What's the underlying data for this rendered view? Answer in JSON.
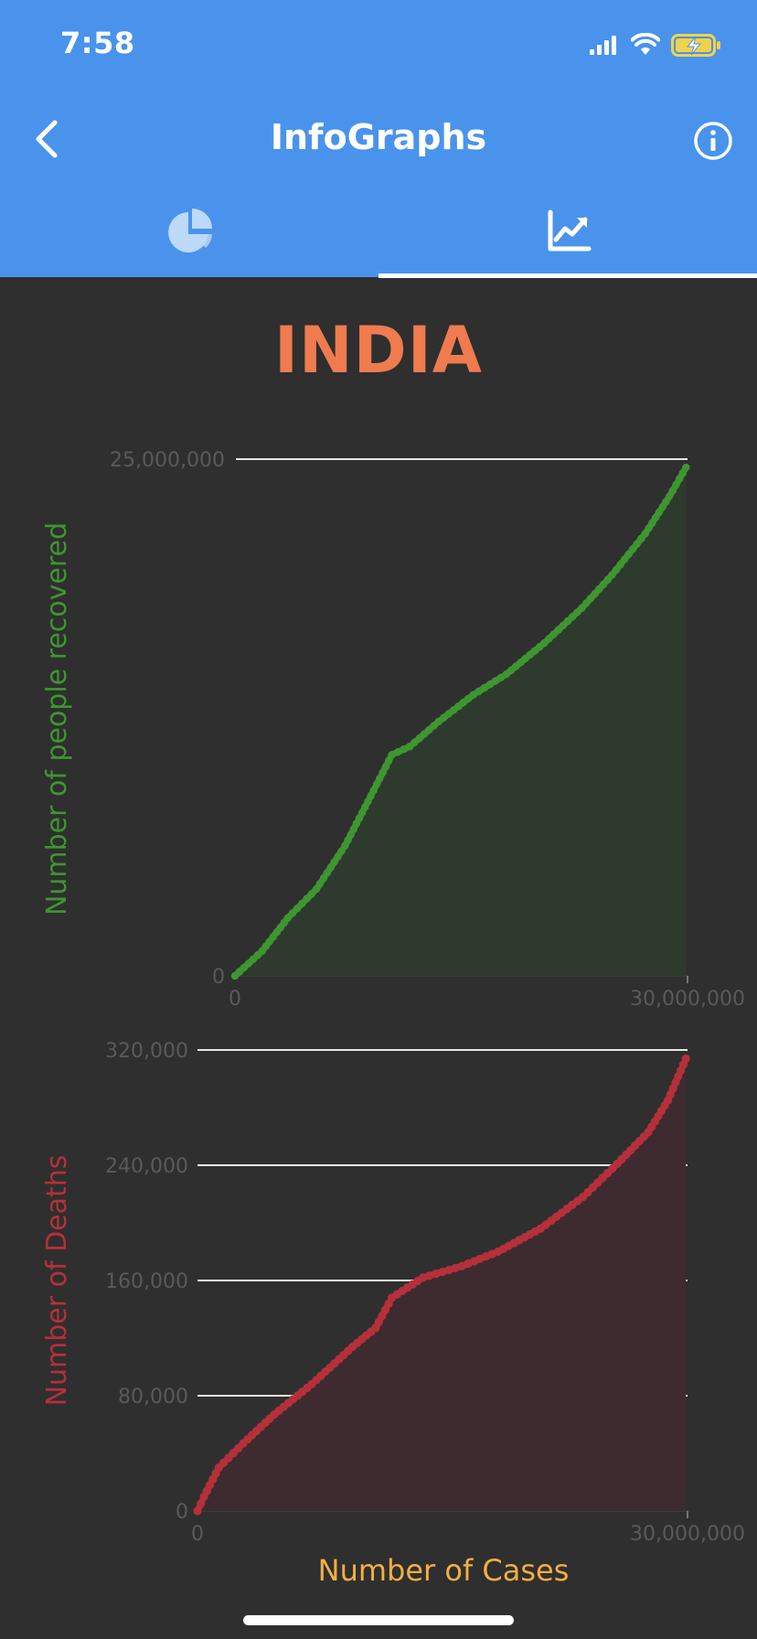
{
  "status_bar": {
    "time": "7:58"
  },
  "header": {
    "title": "InfoGraphs"
  },
  "icons": {
    "back": "chevron-left-icon",
    "info": "info-icon",
    "tab_pie": "pie-chart-icon",
    "tab_line": "line-chart-icon",
    "signal": "signal-icon",
    "wifi": "wifi-icon",
    "battery": "battery-charging-icon"
  },
  "country": "INDIA",
  "colors": {
    "appbar": "#4a93ec",
    "background": "#2f2f2f",
    "country": "#ef7b4f",
    "recovered": "#3e9630",
    "deaths": "#b5303a",
    "x_axis_label": "#f4ae42"
  },
  "tabs": [
    {
      "icon": "pie-chart-icon",
      "selected": false
    },
    {
      "icon": "line-chart-icon",
      "selected": true
    }
  ],
  "chart_data": [
    {
      "type": "area",
      "ylabel": "Number of people recovered",
      "xlim": [
        0,
        30000000
      ],
      "ylim": [
        0,
        25000000
      ],
      "x_ticks": [
        "0",
        "30,000,000"
      ],
      "y_ticks": [
        "0",
        "25,000,000"
      ],
      "y_tick_values": [
        0,
        25000000
      ],
      "color": "#3e9630",
      "fill": "#2e3a2e",
      "x": [
        0,
        1800000,
        3500000,
        5400000,
        7300000,
        9000000,
        10400000,
        11600000,
        13500000,
        15800000,
        18000000,
        20500000,
        23000000,
        25000000,
        27200000,
        28800000,
        29900000
      ],
      "y": [
        0,
        1200000,
        2800000,
        4200000,
        6300000,
        8700000,
        10700000,
        11100000,
        12300000,
        13600000,
        14600000,
        16100000,
        17800000,
        19400000,
        21400000,
        23200000,
        24600000
      ]
    },
    {
      "type": "area",
      "ylabel": "Number of Deaths",
      "xlabel": "Number of Cases",
      "xlim": [
        0,
        30000000
      ],
      "ylim": [
        0,
        320000
      ],
      "x_ticks": [
        "0",
        "30,000,000"
      ],
      "y_ticks": [
        "0",
        "80,000",
        "160,000",
        "240,000",
        "320,000"
      ],
      "y_tick_values": [
        0,
        80000,
        160000,
        240000,
        320000
      ],
      "color": "#b5303a",
      "fill": "#3d2b2f",
      "x": [
        0,
        400000,
        1300000,
        2800000,
        4700000,
        7000000,
        9500000,
        10900000,
        11900000,
        13800000,
        16200000,
        18400000,
        21000000,
        23600000,
        25700000,
        27600000,
        28800000,
        29900000
      ],
      "y": [
        0,
        10000,
        30000,
        47000,
        67000,
        88000,
        114000,
        127000,
        148000,
        162000,
        170000,
        180000,
        196000,
        218000,
        241000,
        263000,
        285000,
        314000
      ]
    }
  ]
}
